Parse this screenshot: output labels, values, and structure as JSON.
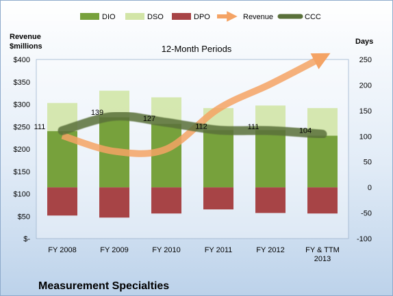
{
  "chart_data": {
    "type": "bar",
    "title": "12-Month Periods",
    "footer_title": "Measurement Specialties",
    "y_left_label_line1": "Revenue",
    "y_left_label_line2": "$millions",
    "y_right_label": "Days",
    "categories": [
      [
        "FY 2008"
      ],
      [
        "FY 2009"
      ],
      [
        "FY 2010"
      ],
      [
        "FY 2011"
      ],
      [
        "FY 2012"
      ],
      [
        "FY & TTM",
        "2013"
      ]
    ],
    "y_left": {
      "min": 0,
      "max": 400,
      "ticks": [
        0,
        50,
        100,
        150,
        200,
        250,
        300,
        350,
        400
      ],
      "tick_labels": [
        "$-",
        "$50",
        "$100",
        "$150",
        "$200",
        "$250",
        "$300",
        "$350",
        "$400"
      ]
    },
    "y_right": {
      "min": -100,
      "max": 250,
      "ticks": [
        -100,
        -50,
        0,
        50,
        100,
        150,
        200,
        250
      ],
      "tick_labels": [
        "-100",
        "-50",
        "0",
        "50",
        "100",
        "150",
        "200",
        "250"
      ]
    },
    "series": [
      {
        "name": "DIO",
        "type": "bar",
        "axis": "right",
        "color": "#77a13c",
        "values": [
          110,
          137,
          124,
          112,
          112,
          101
        ]
      },
      {
        "name": "DSO",
        "type": "bar",
        "axis": "right",
        "color": "#d2e5a7",
        "values": [
          55,
          52,
          52,
          43,
          48,
          54
        ]
      },
      {
        "name": "DPO",
        "type": "bar",
        "axis": "right",
        "color": "#a74446",
        "values": [
          -55,
          -59,
          -51,
          -43,
          -50,
          -51
        ]
      },
      {
        "name": "Revenue",
        "type": "line",
        "axis": "left",
        "color": "#f4a364",
        "values": [
          230,
          195,
          200,
          290,
          345,
          405
        ]
      },
      {
        "name": "CCC",
        "type": "line",
        "axis": "right",
        "color": "#59703a",
        "values": [
          111,
          139,
          127,
          112,
          111,
          104
        ],
        "labels": [
          "111",
          "139",
          "127",
          "112",
          "111",
          "104"
        ]
      }
    ],
    "legend_position": "top",
    "grid": false
  }
}
